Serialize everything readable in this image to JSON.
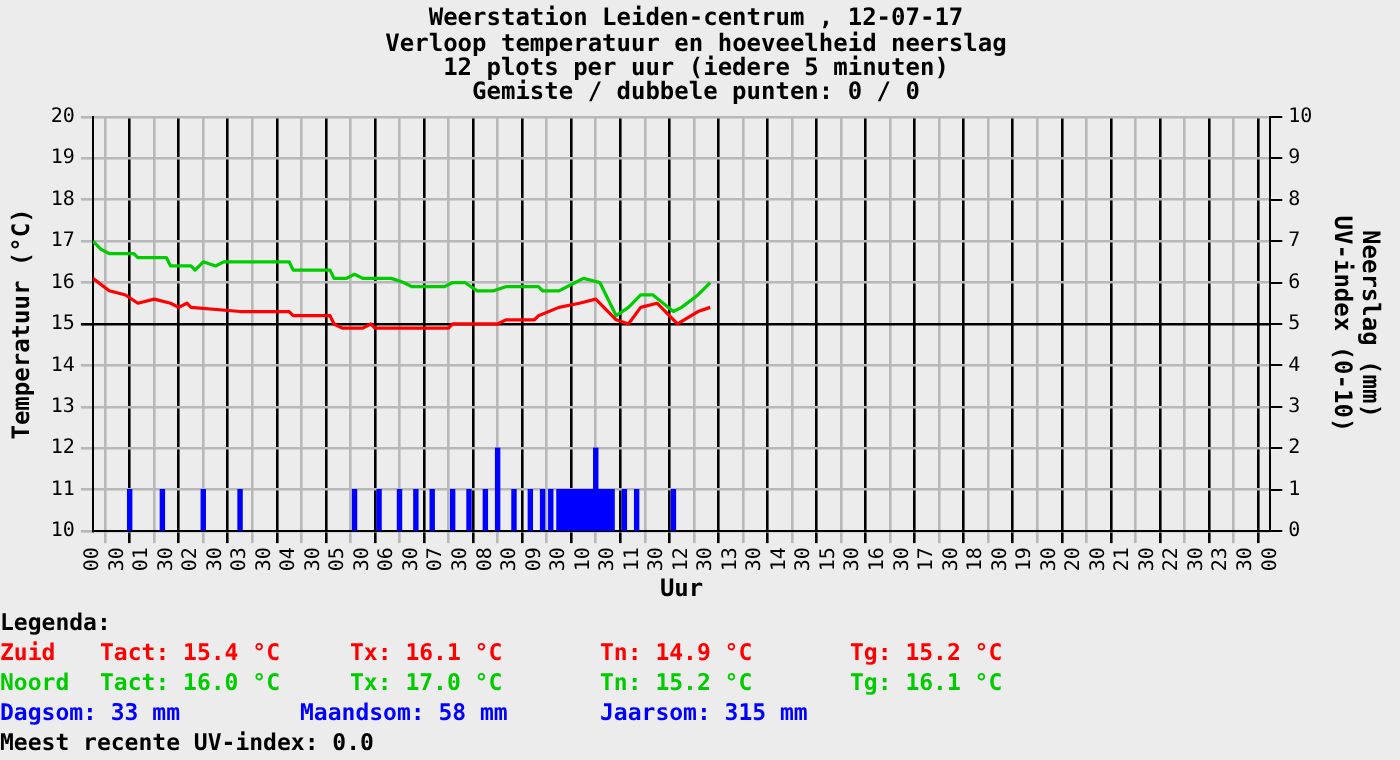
{
  "chart_data": {
    "type": "line",
    "title": "Weerstation Leiden-centrum , 12-07-17",
    "subtitle": "Verloop temperatuur en hoeveelheid neerslag\n12 plots per uur (iedere 5 minuten)\nGemiste / dubbele punten: 0 / 0",
    "xlabel": "Uur",
    "ylabel": "Temperatuur (°C)",
    "y2label": "Neerslag (mm)\nUV-index (0-10)",
    "legend_title": "Legenda:",
    "legend": "bottom left",
    "grid": true,
    "marker": "none",
    "line_style": "solid",
    "xlim": [
      "--07-12T00:00",
      "--07-13T00:00"
    ],
    "xticks": [
      {
        "value": "--07-12T00:00",
        "label": "00"
      },
      {
        "value": "--07-12T00:30",
        "label": "30"
      },
      {
        "value": "--07-12T01:00",
        "label": "01"
      },
      {
        "value": "--07-12T01:30",
        "label": "30"
      },
      {
        "value": "--07-12T02:00",
        "label": "02"
      },
      {
        "value": "--07-12T02:30",
        "label": "30"
      },
      {
        "value": "--07-12T03:00",
        "label": "03"
      },
      {
        "value": "--07-12T03:30",
        "label": "30"
      },
      {
        "value": "--07-12T04:00",
        "label": "04"
      },
      {
        "value": "--07-12T04:30",
        "label": "30"
      },
      {
        "value": "--07-12T05:00",
        "label": "05"
      },
      {
        "value": "--07-12T05:30",
        "label": "30"
      },
      {
        "value": "--07-12T06:00",
        "label": "06"
      },
      {
        "value": "--07-12T06:30",
        "label": "30"
      },
      {
        "value": "--07-12T07:00",
        "label": "07"
      },
      {
        "value": "--07-12T07:30",
        "label": "30"
      },
      {
        "value": "--07-12T08:00",
        "label": "08"
      },
      {
        "value": "--07-12T08:30",
        "label": "30"
      },
      {
        "value": "--07-12T09:00",
        "label": "09"
      },
      {
        "value": "--07-12T09:30",
        "label": "30"
      },
      {
        "value": "--07-12T10:00",
        "label": "10"
      },
      {
        "value": "--07-12T10:30",
        "label": "30"
      },
      {
        "value": "--07-12T11:00",
        "label": "11"
      },
      {
        "value": "--07-12T11:30",
        "label": "30"
      },
      {
        "value": "--07-12T12:00",
        "label": "12"
      },
      {
        "value": "--07-12T12:30",
        "label": "30"
      },
      {
        "value": "--07-12T13:00",
        "label": "13"
      },
      {
        "value": "--07-12T13:30",
        "label": "30"
      },
      {
        "value": "--07-12T14:00",
        "label": "14"
      },
      {
        "value": "--07-12T14:30",
        "label": "30"
      },
      {
        "value": "--07-12T15:00",
        "label": "15"
      },
      {
        "value": "--07-12T15:30",
        "label": "30"
      },
      {
        "value": "--07-12T16:00",
        "label": "16"
      },
      {
        "value": "--07-12T16:30",
        "label": "30"
      },
      {
        "value": "--07-12T17:00",
        "label": "17"
      },
      {
        "value": "--07-12T17:30",
        "label": "30"
      },
      {
        "value": "--07-12T18:00",
        "label": "18"
      },
      {
        "value": "--07-12T18:30",
        "label": "30"
      },
      {
        "value": "--07-12T19:00",
        "label": "19"
      },
      {
        "value": "--07-12T19:30",
        "label": "30"
      },
      {
        "value": "--07-12T20:00",
        "label": "20"
      },
      {
        "value": "--07-12T20:30",
        "label": "30"
      },
      {
        "value": "--07-12T21:00",
        "label": "21"
      },
      {
        "value": "--07-12T21:30",
        "label": "30"
      },
      {
        "value": "--07-12T22:00",
        "label": "22"
      },
      {
        "value": "--07-12T22:30",
        "label": "30"
      },
      {
        "value": "--07-12T23:00",
        "label": "23"
      },
      {
        "value": "--07-12T23:30",
        "label": "30"
      },
      {
        "value": "--07-13T00:00",
        "label": "00"
      }
    ],
    "ylim": [
      10,
      20
    ],
    "yticks": [
      10,
      11,
      12,
      13,
      14,
      15,
      16,
      17,
      18,
      19,
      20
    ],
    "y2lim": [
      0,
      10
    ],
    "y2ticks": [
      0,
      1,
      2,
      3,
      4,
      5,
      6,
      7,
      8,
      9,
      10
    ],
    "series": [
      {
        "name": "Zuid",
        "color": "#ff0000",
        "x": [
          "--07-12T00:00",
          "--07-12T00:20",
          "--07-12T00:40",
          "--07-12T00:55",
          "--07-12T01:15",
          "--07-12T01:35",
          "--07-12T01:45",
          "--07-12T01:55",
          "--07-12T02:00",
          "--07-12T03:00",
          "--07-12T04:00",
          "--07-12T04:05",
          "--07-12T04:50",
          "--07-12T04:55",
          "--07-12T05:05",
          "--07-12T05:30",
          "--07-12T05:40",
          "--07-12T05:45",
          "--07-12T07:15",
          "--07-12T07:20",
          "--07-12T08:15",
          "--07-12T08:25",
          "--07-12T09:00",
          "--07-12T09:05",
          "--07-12T09:30",
          "--07-12T09:55",
          "--07-12T10:15",
          "--07-12T10:40",
          "--07-12T10:55",
          "--07-12T11:10",
          "--07-12T11:30",
          "--07-12T11:45",
          "--07-12T11:55",
          "--07-12T12:20",
          "--07-12T12:35"
        ],
        "values": [
          16.1,
          15.8,
          15.7,
          15.5,
          15.6,
          15.5,
          15.4,
          15.5,
          15.4,
          15.3,
          15.3,
          15.2,
          15.2,
          15.0,
          14.9,
          14.9,
          15.0,
          14.9,
          14.9,
          15.0,
          15.0,
          15.1,
          15.1,
          15.2,
          15.4,
          15.5,
          15.6,
          15.1,
          15.0,
          15.4,
          15.5,
          15.2,
          15.0,
          15.3,
          15.4
        ]
      },
      {
        "name": "Noord",
        "color": "#00cc00",
        "x": [
          "--07-12T00:00",
          "--07-12T00:10",
          "--07-12T00:20",
          "--07-12T00:50",
          "--07-12T00:55",
          "--07-12T01:30",
          "--07-12T01:35",
          "--07-12T02:00",
          "--07-12T02:05",
          "--07-12T02:15",
          "--07-12T02:30",
          "--07-12T02:40",
          "--07-12T04:00",
          "--07-12T04:05",
          "--07-12T04:50",
          "--07-12T04:55",
          "--07-12T05:10",
          "--07-12T05:20",
          "--07-12T05:30",
          "--07-12T06:05",
          "--07-12T06:20",
          "--07-12T06:30",
          "--07-12T07:10",
          "--07-12T07:20",
          "--07-12T07:35",
          "--07-12T07:50",
          "--07-12T08:10",
          "--07-12T08:25",
          "--07-12T09:05",
          "--07-12T09:10",
          "--07-12T09:30",
          "--07-12T09:50",
          "--07-12T10:00",
          "--07-12T10:20",
          "--07-12T10:40",
          "--07-12T10:55",
          "--07-12T11:10",
          "--07-12T11:25",
          "--07-12T11:50",
          "--07-12T12:00",
          "--07-12T12:20",
          "--07-12T12:35"
        ],
        "values": [
          17.0,
          16.8,
          16.7,
          16.7,
          16.6,
          16.6,
          16.4,
          16.4,
          16.3,
          16.5,
          16.4,
          16.5,
          16.5,
          16.3,
          16.3,
          16.1,
          16.1,
          16.2,
          16.1,
          16.1,
          16.0,
          15.9,
          15.9,
          16.0,
          16.0,
          15.8,
          15.8,
          15.9,
          15.9,
          15.8,
          15.8,
          16.0,
          16.1,
          16.0,
          15.2,
          15.4,
          15.7,
          15.7,
          15.3,
          15.4,
          15.7,
          16.0
        ]
      },
      {
        "type": "bar",
        "axis": "y2",
        "color": "#0000ff",
        "x": [
          "--07-12T00:45",
          "--07-12T01:25",
          "--07-12T02:15",
          "--07-12T03:00",
          "--07-12T05:20",
          "--07-12T05:50",
          "--07-12T06:15",
          "--07-12T06:35",
          "--07-12T06:55",
          "--07-12T07:20",
          "--07-12T07:40",
          "--07-12T08:00",
          "--07-12T08:15",
          "--07-12T08:35",
          "--07-12T08:55",
          "--07-12T09:10",
          "--07-12T09:20",
          "--07-12T09:30",
          "--07-12T09:35",
          "--07-12T09:40",
          "--07-12T09:45",
          "--07-12T09:50",
          "--07-12T09:55",
          "--07-12T10:00",
          "--07-12T10:05",
          "--07-12T10:10",
          "--07-12T10:15",
          "--07-12T10:20",
          "--07-12T10:25",
          "--07-12T10:30",
          "--07-12T10:35",
          "--07-12T10:50",
          "--07-12T11:05",
          "--07-12T11:50"
        ],
        "values": [
          1,
          1,
          1,
          1,
          1,
          1,
          1,
          1,
          1,
          1,
          1,
          1,
          2,
          1,
          1,
          1,
          1,
          1,
          1,
          1,
          1,
          1,
          1,
          1,
          1,
          1,
          2,
          1,
          1,
          1,
          1,
          1,
          1,
          1
        ]
      }
    ],
    "annotations": [
      "Tact: 15.4 °C",
      "Tx: 16.1 °C",
      "Tn: 14.9 °C",
      "Tg: 15.2 °C",
      "Tact: 16.0 °C",
      "Tx: 17.0 °C",
      "Tn: 15.2 °C",
      "Tg: 16.1 °C",
      "Dagsom: 33 mm",
      "Maandsom: 58 mm",
      "Jaarsom: 315 mm",
      "Meest recente UV-index: 0.0"
    ]
  }
}
